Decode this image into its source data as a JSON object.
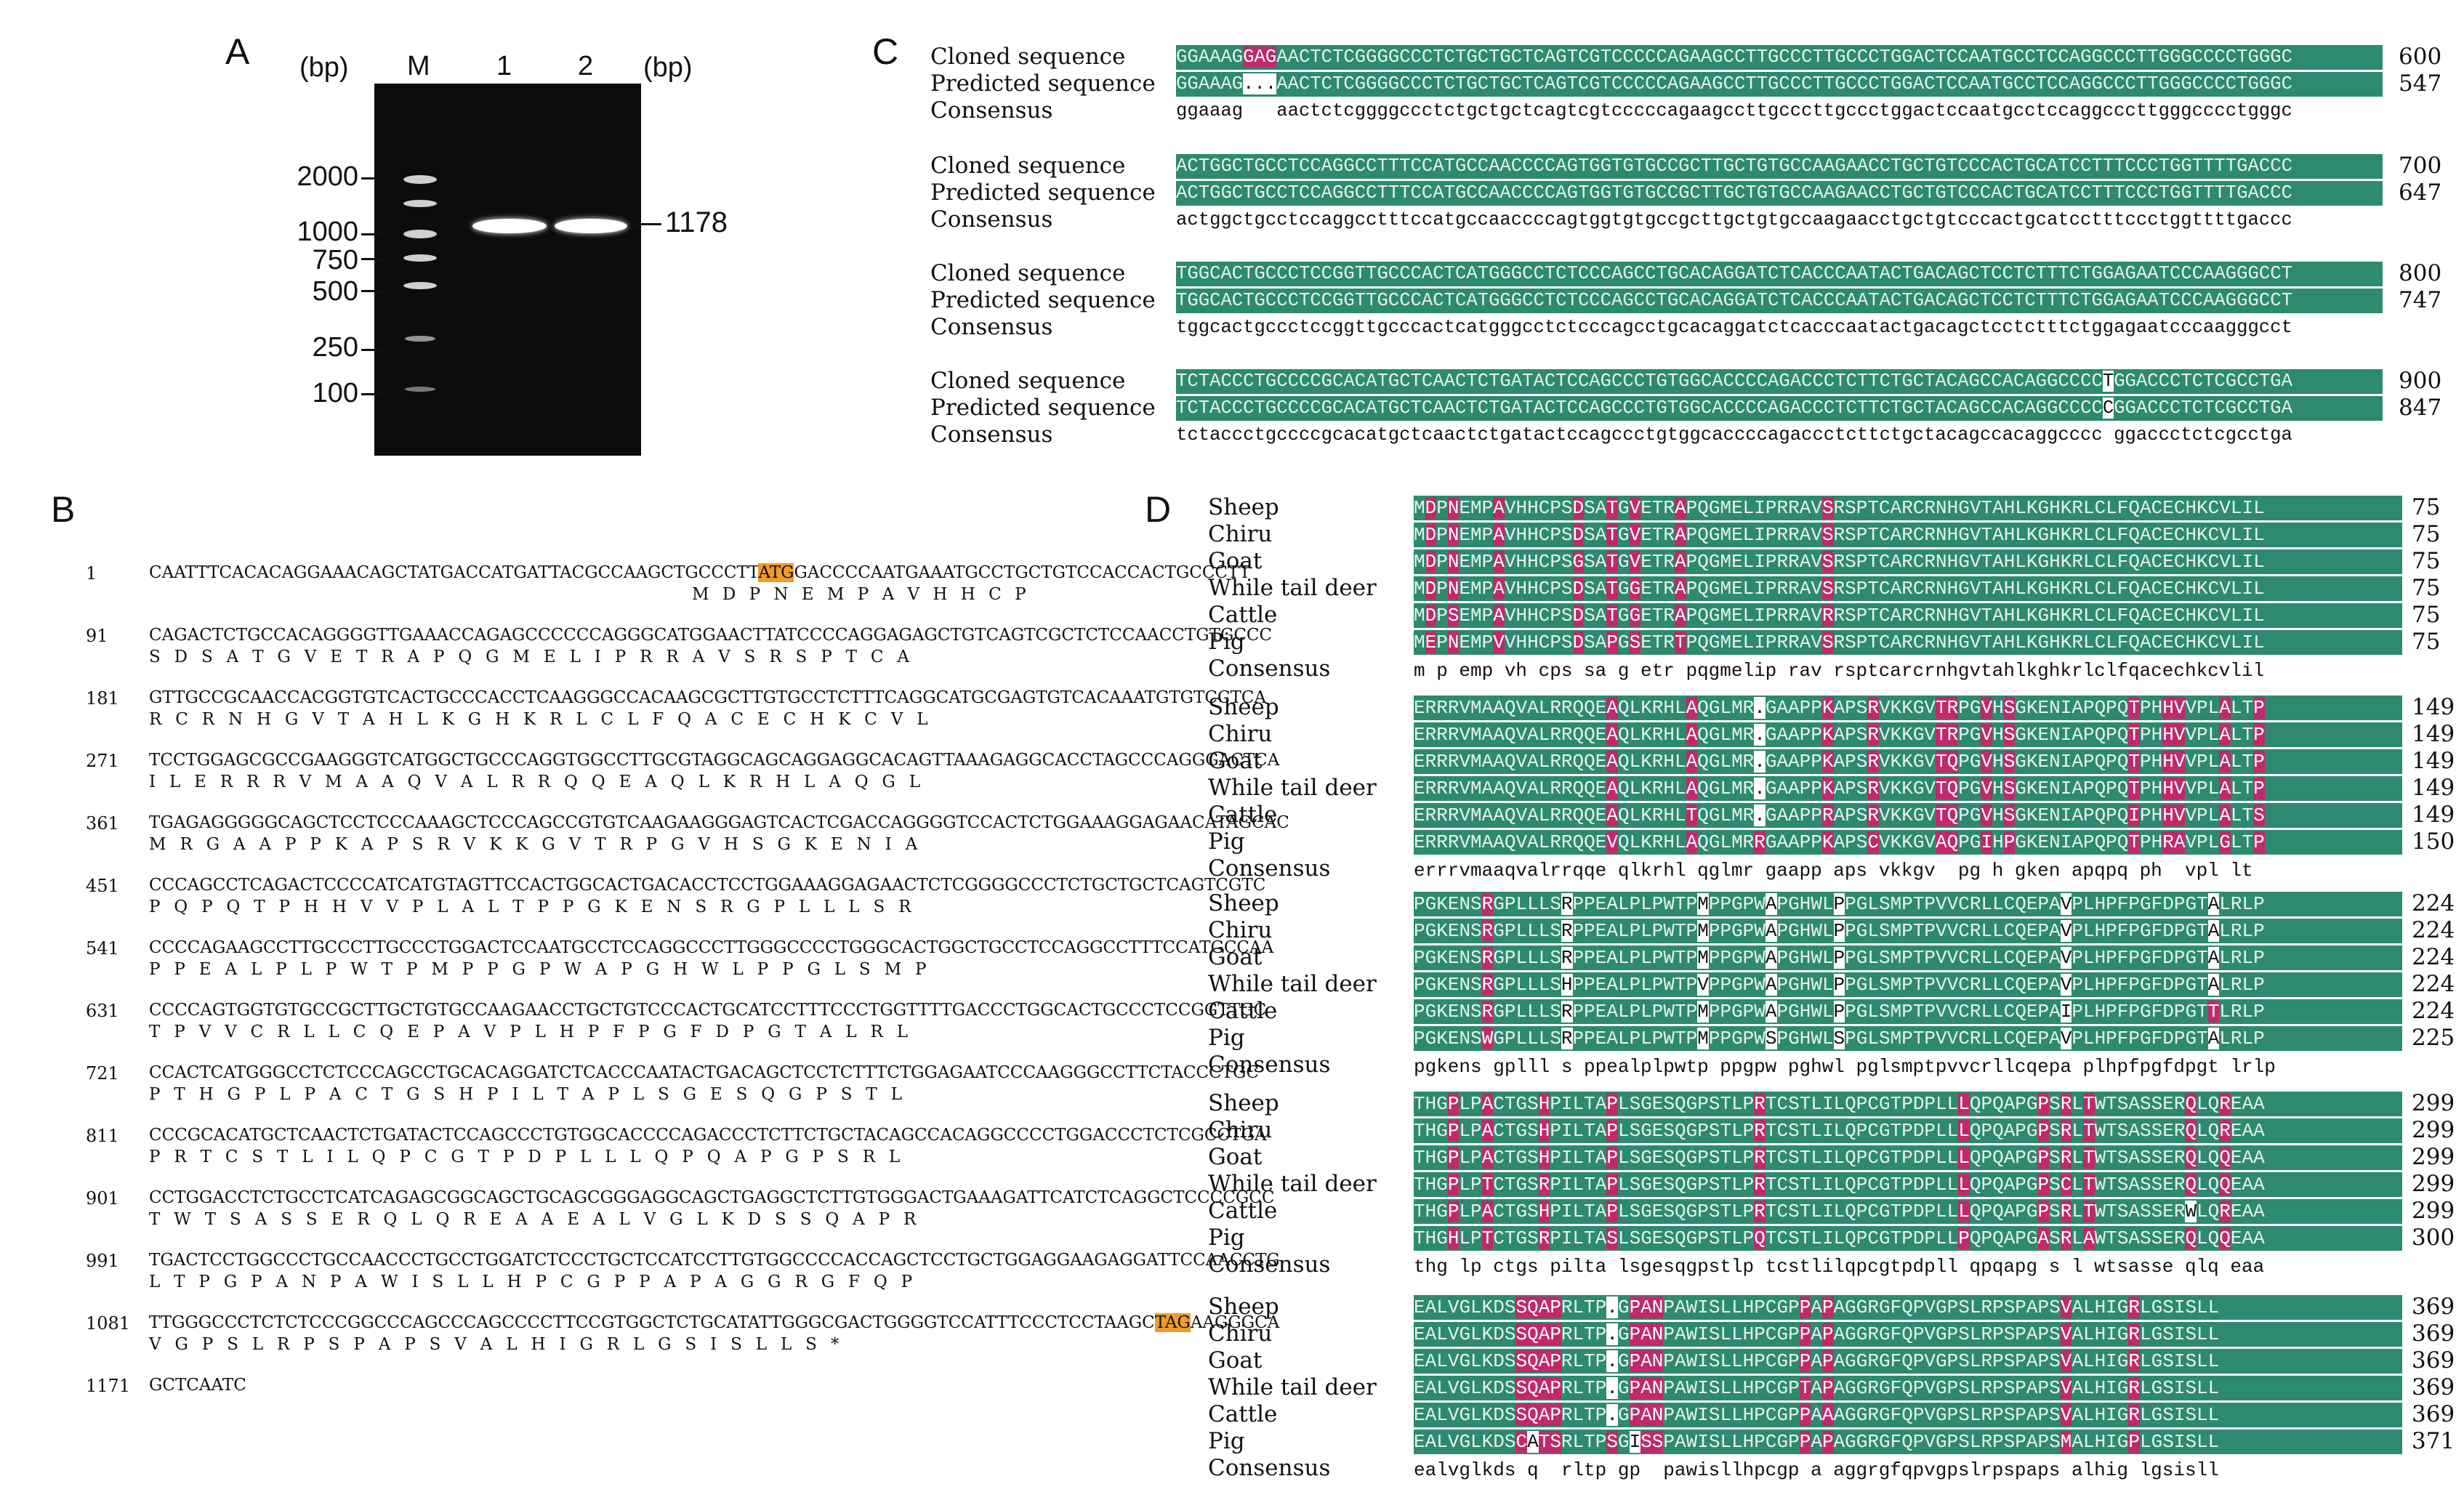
{
  "panels": {
    "a": "A",
    "b": "B",
    "c": "C",
    "d": "D"
  },
  "gel": {
    "lanes": [
      "M",
      "1",
      "2"
    ],
    "unit_left": "(bp)",
    "unit_right": "(bp)",
    "marker_sizes": [
      "2000",
      "1000",
      "750",
      "500",
      "250",
      "100"
    ],
    "product_size": "1178"
  },
  "alignment_c": {
    "row_names": [
      "Cloned sequence",
      "Predicted sequence",
      "Consensus"
    ],
    "blocks": [
      {
        "cloned": "GGAAAGGAGAACTCTCGGGGCCCTCTGCTGCTCAGTCGTCCCCCAGAAGCCTTGCCCTTGCCCTGGACTCCAATGCCTCCAGGCCCTTGGGCCCCTGGGC",
        "predicted": "GGAAAG...AACTCTCGGGGCCCTCTGCTGCTCAGTCGTCCCCCAGAAGCCTTGCCCTTGCCCTGGACTCCAATGCCTCCAGGCCCTTGGGCCCCTGGGC",
        "consensus": "ggaaag   aactctcggggccctctgctgctcagtcgtcccccagaagccttgcccttgccctggactccaatgcctccaggcccttgggcccctgggc",
        "n1": "600",
        "n2": "547"
      },
      {
        "cloned": "ACTGGCTGCCTCCAGGCCTTTCCATGCCAACCCCAGTGGTGTGCCGCTTGCTGTGCCAAGAACCTGCTGTCCCACTGCATCCTTTCCCTGGTTTTGACCC",
        "predicted": "ACTGGCTGCCTCCAGGCCTTTCCATGCCAACCCCAGTGGTGTGCCGCTTGCTGTGCCAAGAACCTGCTGTCCCACTGCATCCTTTCCCTGGTTTTGACCC",
        "consensus": "actggctgcctccaggcctttccatgccaaccccagtggtgtgccgcttgctgtgccaagaacctgctgtcccactgcatcctttccctggttttgaccc",
        "n1": "700",
        "n2": "647"
      },
      {
        "cloned": "TGGCACTGCCCTCCGGTTGCCCACTCATGGGCCTCTCCCAGCCTGCACAGGATCTCACCCAATACTGACAGCTCCTCTTTCTGGAGAATCCCAAGGGCCT",
        "predicted": "TGGCACTGCCCTCCGGTTGCCCACTCATGGGCCTCTCCCAGCCTGCACAGGATCTCACCCAATACTGACAGCTCCTCTTTCTGGAGAATCCCAAGGGCCT",
        "consensus": "tggcactgccctccggttgcccactcatgggcctctcccagcctgcacaggatctcacccaatactgacagctcctctttctggagaatcccaagggcct",
        "n1": "800",
        "n2": "747"
      },
      {
        "cloned": "TCTACCCTGCCCCGCACATGCTCAACTCTGATACTCCAGCCCTGTGGCACCCCAGACCCTCTTCTGCTACAGCCACAGGCCCCTGGACCCTCTCGCCTGA",
        "predicted": "TCTACCCTGCCCCGCACATGCTCAACTCTGATACTCCAGCCCTGTGGCACCCCAGACCCTCTTCTGCTACAGCCACAGGCCCCCGGACCCTCTCGCCTGA",
        "consensus": "tctaccctgccccgcacatgctcaactctgatactccagccctgtggcaccccagaccctcttctgctacagccacaggcccc ggaccctctcgcctga",
        "n1": "900",
        "n2": "847"
      }
    ]
  },
  "sequence_b": [
    {
      "idx": "1",
      "dna_pre": "CAATTTCACACAGGAAACAGCTATGACCATGATTACGCCAAGCTGCCCTT",
      "dna_hl": "ATG",
      "dna_post": "GACCCCAATGAAATGCCTGCTGTCCACCACTGCCCTT",
      "aa": "M D P N E M P A V H H C P"
    },
    {
      "idx": "91",
      "dna_pre": "CAGACTCTGCCACAGGGGTTGAAACCAGAGCCCCCCAGGGCATGGAACTTATCCCCAGGAGAGCTGTCAGTCGCTCTCCAACCTGTGCCC",
      "dna_hl": "",
      "dna_post": "",
      "aa": "S D S A T G V E T R A P Q G M E L I P R R A V S R S P T C A"
    },
    {
      "idx": "181",
      "dna_pre": "GTTGCCGCAACCACGGTGTCACTGCCCACCTCAAGGGCCACAAGCGCTTGTGCCTCTTTCAGGCATGCGAGTGTCACAAATGTGTCCTCA",
      "dna_hl": "",
      "dna_post": "",
      "aa": "R C R N H G V T A H L K G H K R L C L F Q A C E C H K C V L"
    },
    {
      "idx": "271",
      "dna_pre": "TCCTGGAGCGCCGAAGGGTCATGGCTGCCCAGGTGGCCTTGCGTAGGCAGCAGGAGGCACAGTTAAAGAGGCACCTAGCCCAGGGACTCA",
      "dna_hl": "",
      "dna_post": "",
      "aa": "I L E R R R V M A A Q V A L R R Q Q E A Q L K R H L A Q G L"
    },
    {
      "idx": "361",
      "dna_pre": "TGAGAGGGGGCAGCTCCTCCCAAAGCTCCCAGCCGTGTCAAGAAGGGAGTCACTCGACCAGGGGTCCACTCTGGAAAGGAGAACATAGCAC",
      "dna_hl": "",
      "dna_post": "",
      "aa": "M R G A A P P K A P S R V K K G V T R P G V H S G K E N I A"
    },
    {
      "idx": "451",
      "dna_pre": "CCCAGCCTCAGACTCCCCATCATGTAGTTCCACTGGCACTGACACCTCCTGGAAAGGAGAACTCTCGGGGCCCTCTGCTGCTCAGTCGTC",
      "dna_hl": "",
      "dna_post": "",
      "aa": "P Q P Q T P H H V V P L A L T P P G K E N S R G P L L L S R"
    },
    {
      "idx": "541",
      "dna_pre": "CCCCAGAAGCCTTGCCCTTGCCCTGGACTCCAATGCCTCCAGGCCCTTGGGCCCCTGGGCACTGGCTGCCTCCAGGCCTTTCCATGCCAA",
      "dna_hl": "",
      "dna_post": "",
      "aa": "P P E A L P L P W T P M P P G P W A P G H W L P P G L S M P"
    },
    {
      "idx": "631",
      "dna_pre": "CCCCAGTGGTGTGCCGCTTGCTGTGCCAAGAACCTGCTGTCCCACTGCATCCTTTCCCTGGTTTTGACCCTGGCACTGCCCTCCGGTTGC",
      "dna_hl": "",
      "dna_post": "",
      "aa": "T P V V C R L L C Q E P A V P L H P F P G F D P G T A L R L"
    },
    {
      "idx": "721",
      "dna_pre": "CCACTCATGGGCCTCTCCCAGCCTGCACAGGATCTCACCCAATACTGACAGCTCCTCTTTCTGGAGAATCCCAAGGGCCTTCTACCCTGC",
      "dna_hl": "",
      "dna_post": "",
      "aa": "P T H G P L P A C T G S H P I L T A P L S G E S Q G P S T L"
    },
    {
      "idx": "811",
      "dna_pre": "CCCGCACATGCTCAACTCTGATACTCCAGCCCTGTGGCACCCCAGACCCTCTTCTGCTACAGCCACAGGCCCCTGGACCCTCTCGCCTGA",
      "dna_hl": "",
      "dna_post": "",
      "aa": "P R T C S T L I L Q P C G T P D P L L L Q P Q A P G P S R L"
    },
    {
      "idx": "901",
      "dna_pre": "CCTGGACCTCTGCCTCATCAGAGCGGCAGCTGCAGCGGGAGGCAGCTGAGGCTCTTGTGGGACTGAAAGATTCATCTCAGGCTCCCCGCC",
      "dna_hl": "",
      "dna_post": "",
      "aa": "T W T S A S S E R Q L Q R E A A E A L V G L K D S S Q A P R"
    },
    {
      "idx": "991",
      "dna_pre": "TGACTCCTGGCCCTGCCAACCCTGCCTGGATCTCCCTGCTCCATCCTTGTGGCCCCACCAGCTCCTGCTGGAGGAAGAGGATTCCAACCTG",
      "dna_hl": "",
      "dna_post": "",
      "aa": "L T P G P A N P A W I S L L H P C G P P A P A G G R G F Q P"
    },
    {
      "idx": "1081",
      "dna_pre": "TTGGGCCCTCTCTCCCGGCCCAGCCCAGCCCCTTCCGTGGCTCTGCATATTGGGCGACTGGGGTCCATTTCCCTCCTAAGC",
      "dna_hl": "TAG",
      "dna_post": "AAGGGCA",
      "aa": "V G P S L R P S P A P S V A L H I G R L G S I S L L S *"
    },
    {
      "idx": "1171",
      "dna_pre": "GCTCAATC",
      "dna_hl": "",
      "dna_post": "",
      "aa": ""
    }
  ],
  "alignment_d": {
    "species": [
      "Sheep",
      "Chiru",
      "Goat",
      "While tail deer",
      "Cattle",
      "Pig",
      "Consensus"
    ],
    "blocks": [
      {
        "rows": [
          "MDPNEMPAVHHCPSDSATGVETRAPQGMELIPRRAVSRSPTCARCRNHGVTAHLKGHKRLCLFQACECHKCVLIL",
          "MDPNEMPAVHHCPSDSATGVETRAPQGMELIPRRAVSRSPTCARCRNHGVTAHLKGHKRLCLFQACECHKCVLIL",
          "MDPNEMPAVHHCPSGSATGVETRAPQGMELIPRRAVSRSPTCARCRNHGVTAHLKGHKRLCLFQACECHKCVLIL",
          "MDPNEMPAVHHCPSDSATGGETRAPQGMELIPRRAVSRSPTCARCRNHGVTAHLKGHKRLCLFQACECHKCVLIL",
          "MDPSEMPAVHHCPSDSATGGETRAPQGMELIPRRAVRRSPTCARCRNHGVTAHLKGHKRLCLFQACECHKCVLIL",
          "MEPNEMPVVHHCPSDSAPGSETRTPQGMELIPRRAVSRSPTCARCRNHGVTAHLKGHKRLCLFQACECHKCVLIL"
        ],
        "consensus": "m p emp vh cps sa g etr pqgmelip rav rsptcarcrnhgvtahlkghkrlclfqacechkcvlil",
        "nums": [
          "75",
          "75",
          "75",
          "75",
          "75",
          "75"
        ]
      },
      {
        "rows": [
          "ERRRVMAAQVALRRQQEAQLKRHLAQGLMR.GAAPPKAPSRVKKGVTRPGVHSGKENIAPQPQTPHHVVPLALTP",
          "ERRRVMAAQVALRRQQEAQLKRHLAQGLMR.GAAPPKAPSRVKKGVTRPGVHSGKENIAPQPQTPHHVVPLALTP",
          "ERRRVMAAQVALRRQQEAQLKRHLAQGLMR.GAAPPKAPSRVKKGVTQPGVHSGKENIAPQPQTPHHVVPLALTP",
          "ERRRVMAAQVALRRQQEAQLKRHLAQGLMR.GAAPPKAPSRVKKGVTQPGVHSGKENIAPQPQTPHHVVPLALTP",
          "ERRRVMAAQVALRRQQEAQLKRHLTQGLMR.GAAPPRAPSRVKKGVTQPGVHSGKENIAPQPQIPHHVVPLALTS",
          "ERRRVMAAQVALRRQQEVQLKRHLAQGLMRRGAAPPKAPSCVKKGVAQPGIHPGKENIAPQPQTPHRAVPLGLTP"
        ],
        "consensus": "errrvmaaqvalrrqqe qlkrhl qglmr gaapp aps vkkgv  pg h gken apqpq ph  vpl lt",
        "nums": [
          "149",
          "149",
          "149",
          "149",
          "149",
          "150"
        ]
      },
      {
        "rows": [
          "PGKENSRGPLLLSRPPEALPLPWTPMPPGPWAPGHWLPPGLSMPTPVVCRLLCQEPAVPLHPFPGFDPGTALRLP",
          "PGKENSRGPLLLSRPPEALPLPWTPMPPGPWAPGHWLPPGLSMPTPVVCRLLCQEPAVPLHPFPGFDPGTALRLP",
          "PGKENSRGPLLLSRPPEALPLPWTPMPPGPWAPGHWLPPGLSMPTPVVCRLLCQEPAVPLHPFPGFDPGTALRLP",
          "PGKENSRGPLLLSHPPEALPLPWTPVPPGPWAPGHWLPPGLSMPTPVVCRLLCQEPAVPLHPFPGFDPGTALRLP",
          "PGKENSRGPLLLSRPPEALPLPWTPMPPGPWAPGHWLPPGLSMPTPVVCRLLCQEPAIPLHPFPGFDPGTTLRLP",
          "PGKENSWGPLLLSRPPEALPLPWTPMPPGPWSPGHWLSPGLSMPTPVVCRLLCQEPAVPLHPFPGFDPGTALRLP"
        ],
        "consensus": "pgkens gplll s ppealplpwtp ppgpw pghwl pglsmptpvvcrllcqepa plhpfpgfdpgt lrlp",
        "nums": [
          "224",
          "224",
          "224",
          "224",
          "224",
          "225"
        ]
      },
      {
        "rows": [
          "THGPLPACTGSHPILTAPLSGESQGPSTLPRTCSTLILQPCGTPDPLLLQPQAPGPSRLTWTSASSERQLQREAA",
          "THGPLPACTGSHPILTAPLSGESQGPSTLPRTCSTLILQPCGTPDPLLLQPQAPGPSRLTWTSASSERQLQREAA",
          "THGPLPACTGSHPILTAPLSGESQGPSTLPRTCSTLILQPCGTPDPLLLQPQAPGPSRLTWTSASSERQLQQEAA",
          "THGPLPTCTGSRPILTAPLSGESQGPSTLPRTCSTLILQPCGTPDPLLLQPQAPGPSCLTWTSASSERQLQQEAA",
          "THGPLPACTGSHPILTAPLSGESQGPSTLPRTCSTLILQPCGTPDPLLLQPQAPGPSRLTWTSASSERWLQREAA",
          "THGHLPTCTGSRPILTASLSGESQGPSTLPQTCSTLILQPCGTPDPLLPQPQAPGASRLAWTSASSERQLQQEAA"
        ],
        "consensus": "thg lp ctgs pilta lsgesqgpstlp tcstlilqpcgtpdpll qpqapg s l wtsasse qlq eaa",
        "nums": [
          "299",
          "299",
          "299",
          "299",
          "299",
          "300"
        ]
      },
      {
        "rows": [
          "EALVGLKDSSQAPRLTP.GPANPAWISLLHPCGPPAPAGGRGFQPVGPSLRPSPAPSVALHIGRLGSISLL",
          "EALVGLKDSSQAPRLTP.GPANPAWISLLHPCGPPAPAGGRGFQPVGPSLRPSPAPSVALHIGRLGSISLL",
          "EALVGLKDSSQAPRLTP.GPANPAWISLLHPCGPPAPAGGRGFQPVGPSLRPSPAPSVALHIGRLGSISLL",
          "EALVGLKDSSQAPRLTP.GPANPAWISLLHPCGPTAPAGGRGFQPVGPSLRPSPAPSVALHIGRLGSISLL",
          "EALVGLKDSSQAPRLTP.GPANPAWISLLHPCGPPAAAGGRGFQPVGPSLRPSPAPSVALHIGRLGSISLL",
          "EALVGLKDSCATSRLTPSGISSPAWISLLHPCGPPAPAGGRGFQPVGPSLRPSPAPSMALHIGPLGSISLL"
        ],
        "consensus": "ealvglkds q  rltp gp  pawisllhpcgp a aggrgfqpvgpslrpspaps alhig lgsisll",
        "nums": [
          "369",
          "369",
          "369",
          "369",
          "369",
          "371"
        ]
      }
    ]
  }
}
